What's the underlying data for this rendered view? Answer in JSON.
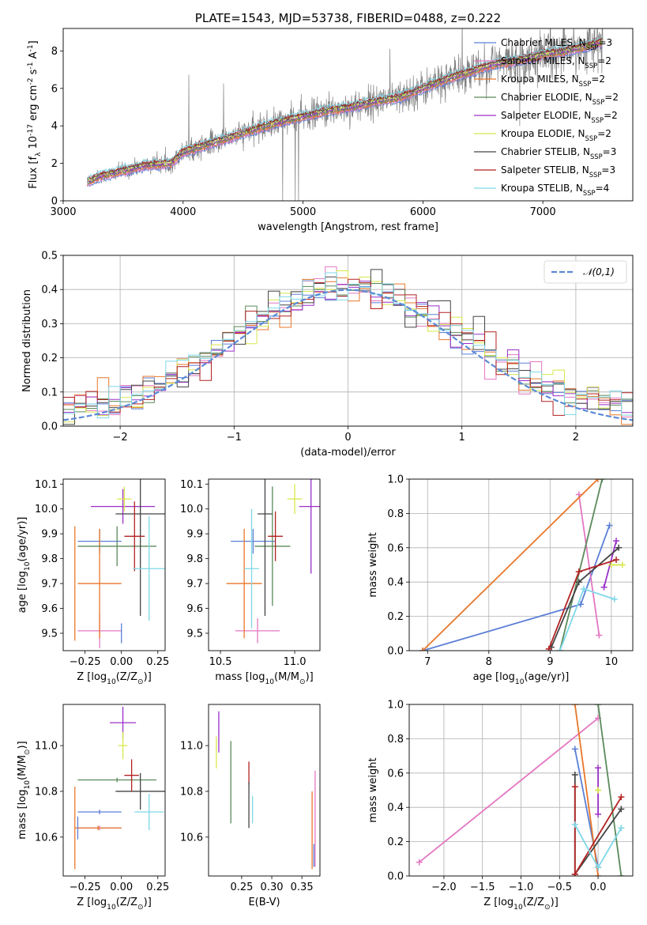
{
  "chart_data": [
    {
      "id": "spectrum",
      "type": "line",
      "title": "PLATE=1543, MJD=53738, FIBERID=0488, z=0.222",
      "xlabel": "wavelength [Angstrom, rest frame]",
      "ylabel": "Flux [f$_\\lambda$ 10$^{-17}$ erg cm$^{-2}$ s$^{-1}$ A$^{-1}$]",
      "xlim": [
        3000,
        7750
      ],
      "ylim": [
        0,
        9.2
      ],
      "xticks": [
        3000,
        4000,
        5000,
        6000,
        7000
      ],
      "yticks": [
        0,
        2,
        4,
        6,
        8
      ],
      "grid": false,
      "legend_position": "top-right",
      "continuum": {
        "x": [
          3200,
          3300,
          3500,
          3700,
          3900,
          4000,
          4200,
          4400,
          4600,
          4800,
          5000,
          5200,
          5400,
          5600,
          5800,
          6000,
          6200,
          6400,
          6600,
          6800,
          7000,
          7200,
          7400,
          7500
        ],
        "y": [
          1.0,
          1.3,
          1.6,
          1.9,
          2.0,
          2.6,
          3.0,
          3.4,
          3.8,
          4.2,
          4.5,
          4.8,
          5.0,
          5.3,
          5.5,
          6.0,
          6.5,
          6.9,
          7.3,
          7.5,
          7.8,
          8.0,
          8.3,
          8.5
        ]
      },
      "series": [
        {
          "name": "Chabrier MILES, N$_{SSP}$=3",
          "color": "#5b7fd6"
        },
        {
          "name": "Salpeter MILES, N$_{SSP}$=2",
          "color": "#e377c2"
        },
        {
          "name": "Kroupa MILES, N$_{SSP}$=2",
          "color": "#e8772a"
        },
        {
          "name": "Chabrier ELODIE, N$_{SSP}$=2",
          "color": "#5a8a5a"
        },
        {
          "name": "Salpeter ELODIE, N$_{SSP}$=2",
          "color": "#9b30c8"
        },
        {
          "name": "Kroupa ELODIE, N$_{SSP}$=2",
          "color": "#d8e84a"
        },
        {
          "name": "Chabrier STELIB, N$_{SSP}$=3",
          "color": "#444444"
        },
        {
          "name": "Salpeter STELIB, N$_{SSP}$=3",
          "color": "#b22222"
        },
        {
          "name": "Kroupa STELIB, N$_{SSP}$=4",
          "color": "#7fd8e8"
        }
      ],
      "data_color": "#808080"
    },
    {
      "id": "residuals",
      "type": "line",
      "xlabel": "(data-model)/error",
      "ylabel": "Normed distribution",
      "xlim": [
        -2.5,
        2.5
      ],
      "ylim": [
        0,
        0.5
      ],
      "xticks": [
        -2,
        -1,
        0,
        1,
        2
      ],
      "yticks": [
        0.0,
        0.1,
        0.2,
        0.3,
        0.4,
        0.5
      ],
      "grid": true,
      "legend_position": "top-right",
      "gaussian": {
        "name": "$\\mathcal{N}(0,1)$",
        "mean": 0,
        "sigma": 1,
        "color": "#5b8bd6"
      },
      "bin_width": 0.1,
      "histogram_colors": [
        "#5b7fd6",
        "#e377c2",
        "#e8772a",
        "#5a8a5a",
        "#9b30c8",
        "#d8e84a",
        "#444444",
        "#b22222",
        "#7fd8e8"
      ]
    },
    {
      "id": "age-vs-Z",
      "type": "scatter",
      "xlabel": "Z [log$_{10}$(Z/Z$_\\odot$)]",
      "ylabel": "age  [log$_{10}$(age/yr)]",
      "xlim": [
        -0.4,
        0.3
      ],
      "ylim": [
        9.43,
        10.12
      ],
      "xticks": [
        -0.25,
        0.0,
        0.25
      ],
      "yticks": [
        9.5,
        9.6,
        9.7,
        9.8,
        9.9,
        10.0,
        10.1
      ],
      "points": [
        {
          "color": "#5b7fd6",
          "x": -0.15,
          "xerr": 0.15,
          "y": 9.87,
          "yerr": 0.05
        },
        {
          "color": "#e377c2",
          "x": -0.15,
          "xerr": 0.15,
          "y": 9.51,
          "yerr": 0.07
        },
        {
          "color": "#e8772a",
          "x": -0.15,
          "xerr": 0.15,
          "y": 9.7,
          "yerr": 0.22
        },
        {
          "color": "#5a8a5a",
          "x": -0.03,
          "xerr": 0.27,
          "y": 9.85,
          "yerr": 0.08
        },
        {
          "color": "#9b30c8",
          "x": 0.01,
          "xerr": 0.22,
          "y": 10.01,
          "yerr": 0.07
        },
        {
          "color": "#d8e84a",
          "x": 0.02,
          "xerr": 0.05,
          "y": 10.04,
          "yerr": 0.05
        },
        {
          "color": "#444444",
          "x": 0.13,
          "xerr": 0.17,
          "y": 9.98,
          "yerr": 0.41
        },
        {
          "color": "#b22222",
          "x": 0.09,
          "xerr": 0.07,
          "y": 9.89,
          "yerr": 0.14
        },
        {
          "color": "#7fd8e8",
          "x": 0.19,
          "xerr": 0.11,
          "y": 9.76,
          "yerr": 0.21
        },
        {
          "color": "#e8772a",
          "x": -0.32,
          "xerr": 0.0,
          "y": 9.7,
          "yerr": 0.23
        },
        {
          "color": "#5b7fd6",
          "x": 0.0,
          "xerr": 0.0,
          "y": 9.5,
          "yerr": 0.04
        }
      ]
    },
    {
      "id": "age-vs-mass",
      "type": "scatter",
      "xlabel": "mass [log$_{10}$(M/M$_\\odot$)]",
      "ylabel": "",
      "xlim": [
        10.42,
        11.17
      ],
      "ylim": [
        9.43,
        10.12
      ],
      "xticks": [
        10.5,
        11.0
      ],
      "yticks": [
        9.5,
        9.6,
        9.7,
        9.8,
        9.9,
        10.0,
        10.1
      ],
      "points": [
        {
          "color": "#5b7fd6",
          "x": 10.72,
          "xerr": 0.15,
          "y": 9.87,
          "yerr": 0.05
        },
        {
          "color": "#e377c2",
          "x": 10.75,
          "xerr": 0.15,
          "y": 9.51,
          "yerr": 0.05
        },
        {
          "color": "#e8772a",
          "x": 10.66,
          "xerr": 0.12,
          "y": 9.7,
          "yerr": 0.22
        },
        {
          "color": "#5a8a5a",
          "x": 10.85,
          "xerr": 0.12,
          "y": 9.85,
          "yerr": 0.24
        },
        {
          "color": "#9b30c8",
          "x": 11.11,
          "xerr": 0.08,
          "y": 10.01,
          "yerr": 0.27
        },
        {
          "color": "#d8e84a",
          "x": 11.0,
          "xerr": 0.05,
          "y": 10.04,
          "yerr": 0.06
        },
        {
          "color": "#444444",
          "x": 10.8,
          "xerr": 0.05,
          "y": 9.98,
          "yerr": 0.41
        },
        {
          "color": "#b22222",
          "x": 10.87,
          "xerr": 0.05,
          "y": 9.89,
          "yerr": 0.1
        },
        {
          "color": "#7fd8e8",
          "x": 10.71,
          "xerr": 0.05,
          "y": 9.76,
          "yerr": 0.24
        }
      ]
    },
    {
      "id": "weight-vs-age",
      "type": "line",
      "xlabel": "age  [log$_{10}$(age/yr)]",
      "ylabel": "mass weight",
      "xlim": [
        6.7,
        10.35
      ],
      "ylim": [
        0,
        1.0
      ],
      "xticks": [
        7,
        8,
        9,
        10
      ],
      "yticks": [
        0.0,
        0.2,
        0.4,
        0.6,
        0.8,
        1.0
      ],
      "grid": true,
      "series": [
        {
          "color": "#5b7fd6",
          "x": [
            6.92,
            9.5,
            9.97
          ],
          "y": [
            0.0,
            0.27,
            0.73
          ]
        },
        {
          "color": "#e377c2",
          "x": [
            9.47,
            9.8
          ],
          "y": [
            0.91,
            0.09
          ]
        },
        {
          "color": "#e8772a",
          "x": [
            6.92,
            9.78
          ],
          "y": [
            0.0,
            1.0
          ]
        },
        {
          "color": "#5a8a5a",
          "x": [
            9.16,
            9.85
          ],
          "y": [
            0.0,
            1.0
          ]
        },
        {
          "color": "#9b30c8",
          "x": [
            9.88,
            10.08
          ],
          "y": [
            0.37,
            0.64
          ]
        },
        {
          "color": "#d8e84a",
          "x": [
            10.0,
            10.18
          ],
          "y": [
            0.5,
            0.5
          ]
        },
        {
          "color": "#444444",
          "x": [
            9.02,
            9.47,
            10.12
          ],
          "y": [
            0.02,
            0.4,
            0.6
          ]
        },
        {
          "color": "#b22222",
          "x": [
            8.98,
            9.47,
            10.08
          ],
          "y": [
            0.01,
            0.46,
            0.53
          ]
        },
        {
          "color": "#7fd8e8",
          "x": [
            9.16,
            9.55,
            10.05
          ],
          "y": [
            0.0,
            0.36,
            0.3
          ]
        }
      ]
    },
    {
      "id": "mass-vs-Z",
      "type": "scatter",
      "xlabel": "Z [log$_{10}$(Z/Z$_\\odot$)]",
      "ylabel": "mass [log$_{10}$(M/M$_\\odot$)]",
      "xlim": [
        -0.4,
        0.3
      ],
      "ylim": [
        10.43,
        11.18
      ],
      "xticks": [
        -0.25,
        0.0,
        0.25
      ],
      "yticks": [
        10.6,
        10.8,
        11.0
      ],
      "points": [
        {
          "color": "#5b7fd6",
          "x": -0.15,
          "xerr": 0.15,
          "y": 10.71,
          "yerr": 0.01
        },
        {
          "color": "#e377c2",
          "x": -0.15,
          "xerr": 0.15,
          "y": 10.64,
          "yerr": 0.01
        },
        {
          "color": "#e8772a",
          "x": -0.16,
          "xerr": 0.16,
          "y": 10.64,
          "yerr": 0.01
        },
        {
          "color": "#5a8a5a",
          "x": -0.03,
          "xerr": 0.27,
          "y": 10.85,
          "yerr": 0.01
        },
        {
          "color": "#9b30c8",
          "x": 0.01,
          "xerr": 0.09,
          "y": 11.1,
          "yerr": 0.07
        },
        {
          "color": "#d8e84a",
          "x": 0.01,
          "xerr": 0.03,
          "y": 11.0,
          "yerr": 0.06
        },
        {
          "color": "#444444",
          "x": 0.13,
          "xerr": 0.17,
          "y": 10.8,
          "yerr": 0.08
        },
        {
          "color": "#b22222",
          "x": 0.07,
          "xerr": 0.05,
          "y": 10.87,
          "yerr": 0.07
        },
        {
          "color": "#7fd8e8",
          "x": 0.19,
          "xerr": 0.1,
          "y": 10.71,
          "yerr": 0.08
        },
        {
          "color": "#e8772a",
          "x": -0.32,
          "xerr": 0.0,
          "y": 10.64,
          "yerr": 0.18
        },
        {
          "color": "#5b7fd6",
          "x": -0.3,
          "xerr": 0.0,
          "y": 10.64,
          "yerr": 0.05
        }
      ]
    },
    {
      "id": "mass-vs-EBV",
      "type": "scatter",
      "xlabel": "E(B-V)",
      "ylabel": "",
      "xlim": [
        0.195,
        0.38
      ],
      "ylim": [
        10.43,
        11.18
      ],
      "xticks": [
        0.25,
        0.3,
        0.35
      ],
      "yticks": [
        10.6,
        10.8,
        11.0
      ],
      "points": [
        {
          "color": "#d8e84a",
          "x": 0.208,
          "xerr": 0.0,
          "y": 10.97,
          "yerr": 0.07
        },
        {
          "color": "#9b30c8",
          "x": 0.212,
          "xerr": 0.0,
          "y": 11.06,
          "yerr": 0.09
        },
        {
          "color": "#5a8a5a",
          "x": 0.232,
          "xerr": 0.0,
          "y": 10.84,
          "yerr": 0.18
        },
        {
          "color": "#b22222",
          "x": 0.262,
          "xerr": 0.0,
          "y": 10.88,
          "yerr": 0.05
        },
        {
          "color": "#444444",
          "x": 0.262,
          "xerr": 0.0,
          "y": 10.74,
          "yerr": 0.1
        },
        {
          "color": "#7fd8e8",
          "x": 0.268,
          "xerr": 0.0,
          "y": 10.72,
          "yerr": 0.06
        },
        {
          "color": "#e8772a",
          "x": 0.367,
          "xerr": 0.0,
          "y": 10.63,
          "yerr": 0.17
        },
        {
          "color": "#e377c2",
          "x": 0.372,
          "xerr": 0.0,
          "y": 10.68,
          "yerr": 0.21
        },
        {
          "color": "#5b7fd6",
          "x": 0.37,
          "xerr": 0.0,
          "y": 10.52,
          "yerr": 0.05
        }
      ]
    },
    {
      "id": "weight-vs-Z",
      "type": "line",
      "xlabel": "Z [log$_{10}$(Z/Z$_\\odot$)]",
      "ylabel": "mass weight",
      "xlim": [
        -2.45,
        0.45
      ],
      "ylim": [
        0,
        1.0
      ],
      "xticks": [
        -2.0,
        -1.5,
        -1.0,
        -0.5,
        0.0
      ],
      "yticks": [
        0.0,
        0.2,
        0.4,
        0.6,
        0.8,
        1.0
      ],
      "grid": true,
      "series": [
        {
          "color": "#5b7fd6",
          "x": [
            -0.3,
            0.0
          ],
          "y": [
            0.74,
            0.05
          ]
        },
        {
          "color": "#e377c2",
          "x": [
            -2.32,
            0.0
          ],
          "y": [
            0.08,
            0.92
          ]
        },
        {
          "color": "#e8772a",
          "x": [
            -0.3,
            0.0
          ],
          "y": [
            1.0,
            0.0
          ]
        },
        {
          "color": "#5a8a5a",
          "x": [
            0.0,
            0.3
          ],
          "y": [
            1.0,
            0.0
          ]
        },
        {
          "color": "#9b30c8",
          "x": [
            0.0,
            0.0
          ],
          "y": [
            0.63,
            0.36
          ]
        },
        {
          "color": "#d8e84a",
          "x": [
            0.0,
            0.0
          ],
          "y": [
            0.5,
            0.5
          ]
        },
        {
          "color": "#444444",
          "x": [
            -0.3,
            -0.3,
            0.3
          ],
          "y": [
            0.59,
            0.01,
            0.39
          ]
        },
        {
          "color": "#b22222",
          "x": [
            -0.3,
            -0.3,
            0.3
          ],
          "y": [
            0.52,
            0.01,
            0.46
          ]
        },
        {
          "color": "#7fd8e8",
          "x": [
            -0.3,
            0.0,
            0.3
          ],
          "y": [
            0.3,
            0.05,
            0.28
          ]
        }
      ]
    }
  ]
}
